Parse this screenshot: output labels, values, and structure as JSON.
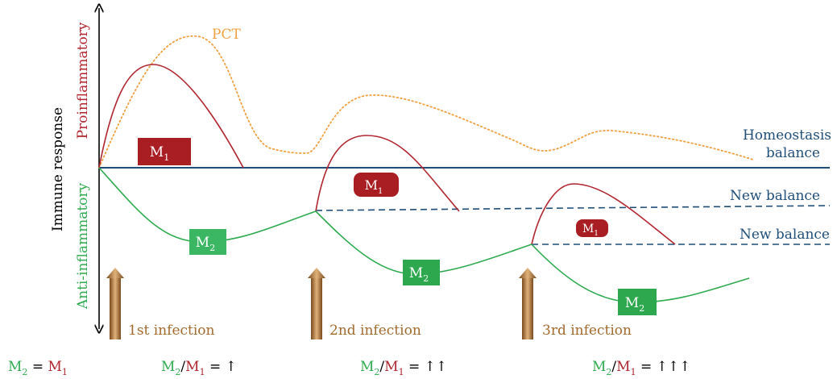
{
  "colors": {
    "proinflammatory": "#b0252e",
    "anti_inflammatory": "#2eaa4f",
    "balance": "#1f4e79",
    "pct": "#f0a040",
    "infection": "#a36a2e",
    "m1_fill": "#a81e23",
    "m2_fill": "#2ea84e"
  },
  "axis": {
    "y_label": "Immune response",
    "pro_label": "Proinflammatory",
    "anti_label": "Anti-inflammatory"
  },
  "curves": {
    "pct_label": "PCT",
    "homeostasis_line1": "Homeostasis",
    "homeostasis_line2": "balance",
    "new_balance_1": "New balance",
    "new_balance_2": "New balance"
  },
  "cell_badges": {
    "m1_letter": "M",
    "m1_sub": "1",
    "m2_letter": "M",
    "m2_sub": "2"
  },
  "infections": [
    {
      "label": "1st infection"
    },
    {
      "label": "2nd infection"
    },
    {
      "label": "3rd infection"
    }
  ],
  "ratios": {
    "r0": {
      "a": "M",
      "a_sub": "2",
      "op": " = ",
      "b": "M",
      "b_sub": "1",
      "tail": ""
    },
    "r1": {
      "a": "M",
      "a_sub": "2",
      "op": "/",
      "b": "M",
      "b_sub": "1",
      "tail": " = ↑"
    },
    "r2": {
      "a": "M",
      "a_sub": "2",
      "op": "/",
      "b": "M",
      "b_sub": "1",
      "tail": " = ↑↑"
    },
    "r3": {
      "a": "M",
      "a_sub": "2",
      "op": "/",
      "b": "M",
      "b_sub": "1",
      "tail": " = ↑↑↑"
    }
  }
}
